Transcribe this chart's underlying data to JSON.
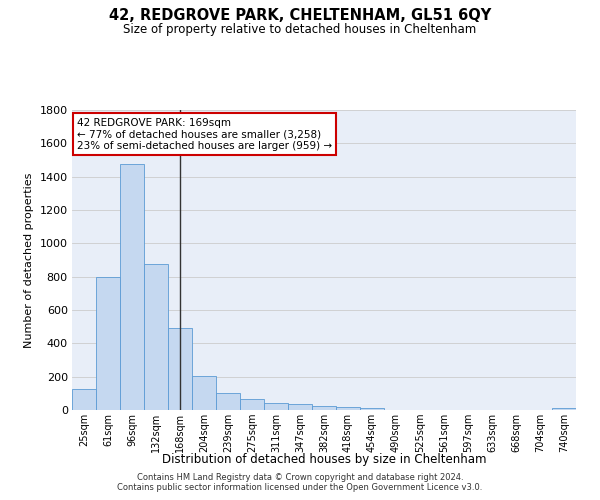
{
  "title": "42, REDGROVE PARK, CHELTENHAM, GL51 6QY",
  "subtitle": "Size of property relative to detached houses in Cheltenham",
  "xlabel": "Distribution of detached houses by size in Cheltenham",
  "ylabel": "Number of detached properties",
  "categories": [
    "25sqm",
    "61sqm",
    "96sqm",
    "132sqm",
    "168sqm",
    "204sqm",
    "239sqm",
    "275sqm",
    "311sqm",
    "347sqm",
    "382sqm",
    "418sqm",
    "454sqm",
    "490sqm",
    "525sqm",
    "561sqm",
    "597sqm",
    "633sqm",
    "668sqm",
    "704sqm",
    "740sqm"
  ],
  "values": [
    125,
    800,
    1475,
    875,
    490,
    205,
    105,
    65,
    42,
    35,
    25,
    20,
    13,
    0,
    0,
    0,
    0,
    0,
    0,
    0,
    13
  ],
  "bar_color": "#c5d8f0",
  "bar_edge_color": "#5b9bd5",
  "annotation_text1": "42 REDGROVE PARK: 169sqm",
  "annotation_text2": "← 77% of detached houses are smaller (3,258)",
  "annotation_text3": "23% of semi-detached houses are larger (959) →",
  "annotation_box_color": "#ffffff",
  "annotation_box_edge": "#cc0000",
  "vline_color": "#333333",
  "ylim": [
    0,
    1800
  ],
  "yticks": [
    0,
    200,
    400,
    600,
    800,
    1000,
    1200,
    1400,
    1600,
    1800
  ],
  "grid_color": "#cccccc",
  "bg_color": "#e8eef8",
  "footer1": "Contains HM Land Registry data © Crown copyright and database right 2024.",
  "footer2": "Contains public sector information licensed under the Open Government Licence v3.0."
}
